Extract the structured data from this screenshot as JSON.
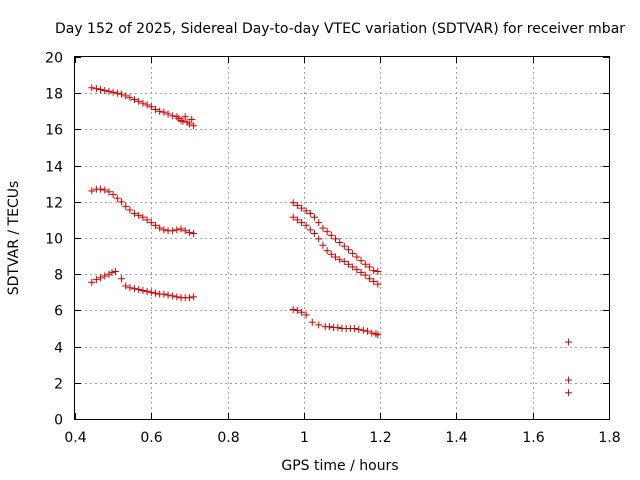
{
  "chart_data": {
    "type": "scatter",
    "title": "Day 152 of 2025, Sidereal Day-to-day VTEC variation (SDTVAR) for receiver mbar",
    "xlabel": "GPS time / hours",
    "ylabel": "SDTVAR / TECUs",
    "xlim": [
      0.4,
      1.8
    ],
    "ylim": [
      0,
      20
    ],
    "xticks": [
      0.4,
      0.6,
      0.8,
      1,
      1.2,
      1.4,
      1.6,
      1.8
    ],
    "xtick_labels": [
      "0.4",
      "0.6",
      "0.8",
      "1",
      "1.2",
      "1.4",
      "1.6",
      "1.8"
    ],
    "yticks": [
      0,
      2,
      4,
      6,
      8,
      10,
      12,
      14,
      16,
      18,
      20
    ],
    "ytick_labels": [
      "0",
      "2",
      "4",
      "6",
      "8",
      "10",
      "12",
      "14",
      "16",
      "18",
      "20"
    ],
    "grid": true,
    "marker": "+",
    "marker_color": "#cc0000",
    "series": [
      {
        "name": "upper",
        "x": [
          0.444,
          0.456,
          0.467,
          0.478,
          0.489,
          0.5,
          0.511,
          0.522,
          0.533,
          0.544,
          0.556,
          0.567,
          0.578,
          0.589,
          0.6,
          0.611,
          0.622,
          0.633,
          0.644,
          0.656,
          0.667,
          0.672,
          0.678,
          0.683,
          0.689,
          0.694,
          0.7,
          0.706,
          0.711
        ],
        "y": [
          18.3,
          18.25,
          18.2,
          18.15,
          18.1,
          18.05,
          18.0,
          17.95,
          17.85,
          17.75,
          17.65,
          17.55,
          17.45,
          17.35,
          17.25,
          17.1,
          17.0,
          16.95,
          16.85,
          16.75,
          16.7,
          16.6,
          16.5,
          16.45,
          16.7,
          16.4,
          16.3,
          16.55,
          16.2
        ]
      },
      {
        "name": "middle",
        "x": [
          0.444,
          0.456,
          0.467,
          0.478,
          0.489,
          0.5,
          0.511,
          0.522,
          0.533,
          0.544,
          0.556,
          0.567,
          0.578,
          0.589,
          0.6,
          0.611,
          0.622,
          0.633,
          0.644,
          0.656,
          0.667,
          0.678,
          0.689,
          0.7,
          0.711
        ],
        "y": [
          12.6,
          12.7,
          12.7,
          12.65,
          12.55,
          12.4,
          12.2,
          12.0,
          11.75,
          11.55,
          11.35,
          11.25,
          11.15,
          11.0,
          10.85,
          10.7,
          10.55,
          10.45,
          10.4,
          10.4,
          10.45,
          10.5,
          10.4,
          10.3,
          10.25
        ]
      },
      {
        "name": "lower",
        "x": [
          0.444,
          0.456,
          0.467,
          0.478,
          0.489,
          0.497,
          0.506,
          0.522,
          0.533,
          0.544,
          0.556,
          0.567,
          0.578,
          0.589,
          0.6,
          0.611,
          0.622,
          0.633,
          0.644,
          0.656,
          0.667,
          0.678,
          0.689,
          0.7,
          0.711
        ],
        "y": [
          7.55,
          7.7,
          7.8,
          7.9,
          8.0,
          8.1,
          8.15,
          7.75,
          7.35,
          7.25,
          7.2,
          7.15,
          7.1,
          7.05,
          7.0,
          6.95,
          6.9,
          6.9,
          6.85,
          6.8,
          6.75,
          6.7,
          6.7,
          6.7,
          6.75
        ]
      },
      {
        "name": "upper-2",
        "x": [
          0.972,
          0.983,
          0.994,
          1.006,
          1.017,
          1.028,
          1.039,
          1.05,
          1.061,
          1.072,
          1.083,
          1.094,
          1.106,
          1.117,
          1.128,
          1.139,
          1.15,
          1.161,
          1.172,
          1.183,
          1.194
        ],
        "y": [
          11.95,
          11.8,
          11.65,
          11.5,
          11.35,
          11.15,
          10.85,
          10.55,
          10.35,
          10.15,
          9.95,
          9.75,
          9.55,
          9.35,
          9.15,
          8.95,
          8.75,
          8.55,
          8.4,
          8.2,
          8.15
        ]
      },
      {
        "name": "middle-2",
        "x": [
          0.972,
          0.983,
          0.994,
          1.006,
          1.017,
          1.028,
          1.039,
          1.05,
          1.061,
          1.072,
          1.083,
          1.094,
          1.106,
          1.117,
          1.128,
          1.139,
          1.15,
          1.161,
          1.172,
          1.183,
          1.194
        ],
        "y": [
          11.15,
          11.0,
          10.85,
          10.7,
          10.45,
          10.25,
          9.95,
          9.6,
          9.3,
          9.1,
          8.95,
          8.8,
          8.7,
          8.55,
          8.4,
          8.25,
          8.1,
          7.95,
          7.75,
          7.6,
          7.45
        ]
      },
      {
        "name": "lower-2",
        "x": [
          0.972,
          0.983,
          0.994,
          1.006,
          1.022,
          1.039,
          1.056,
          1.067,
          1.078,
          1.089,
          1.1,
          1.111,
          1.122,
          1.133,
          1.144,
          1.156,
          1.167,
          1.178,
          1.189,
          1.194
        ],
        "y": [
          6.05,
          6.0,
          5.9,
          5.75,
          5.35,
          5.2,
          5.1,
          5.1,
          5.05,
          5.05,
          5.0,
          5.0,
          5.0,
          5.0,
          4.95,
          4.9,
          4.85,
          4.75,
          4.7,
          4.65
        ]
      },
      {
        "name": "isolated",
        "x": [
          1.694,
          1.694,
          1.694
        ],
        "y": [
          4.25,
          2.15,
          1.45
        ]
      }
    ]
  }
}
